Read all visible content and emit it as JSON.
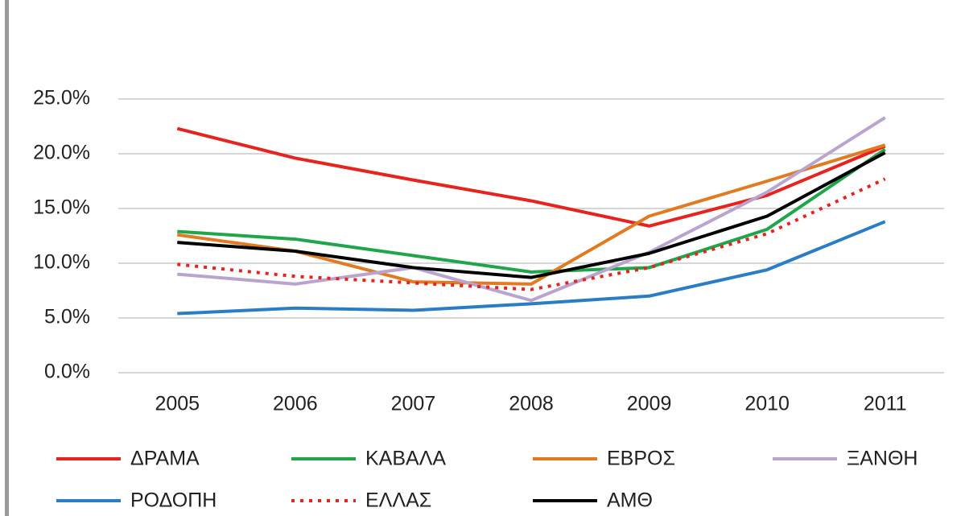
{
  "chart_data": {
    "type": "line",
    "categories": [
      "2005",
      "2006",
      "2007",
      "2008",
      "2009",
      "2010",
      "2011"
    ],
    "series": [
      {
        "name": "ΔΡΑΜΑ",
        "color": "#e8221e",
        "values": [
          22.3,
          19.6,
          17.6,
          15.7,
          13.4,
          16.2,
          20.7
        ]
      },
      {
        "name": "ΚΑΒΑΛΑ",
        "color": "#1fa64a",
        "values": [
          12.9,
          12.2,
          10.7,
          9.2,
          9.6,
          13.1,
          20.4
        ]
      },
      {
        "name": "ΕΒΡΟΣ",
        "color": "#e07b22",
        "values": [
          12.6,
          11.1,
          8.3,
          8.1,
          14.3,
          17.5,
          20.8
        ]
      },
      {
        "name": "ΞΑΝΘΗ",
        "color": "#b9a4d0",
        "values": [
          9.0,
          8.1,
          9.6,
          6.6,
          11.0,
          16.5,
          23.3
        ]
      },
      {
        "name": "ΡΟΔΟΠΗ",
        "color": "#2a7dc4",
        "values": [
          5.4,
          5.9,
          5.7,
          6.3,
          7.0,
          9.4,
          13.8
        ]
      },
      {
        "name": "ΕΛΛΑΣ",
        "color": "#e8221e",
        "line_style": "dotted",
        "values": [
          9.9,
          8.8,
          8.2,
          7.6,
          9.6,
          12.7,
          17.7
        ]
      },
      {
        "name": "ΑΜΘ",
        "color": "#000000",
        "values": [
          11.9,
          11.1,
          9.6,
          8.7,
          10.9,
          14.3,
          20.1
        ]
      }
    ],
    "ylim": [
      0,
      25
    ],
    "yticks": [
      {
        "value": 0,
        "label": "0.0%"
      },
      {
        "value": 5,
        "label": "5.0%"
      },
      {
        "value": 10,
        "label": "10.0%"
      },
      {
        "value": 15,
        "label": "15.0%"
      },
      {
        "value": 20,
        "label": "20.0%"
      },
      {
        "value": 25,
        "label": "25.0%"
      }
    ],
    "grid": true,
    "legend": "bottom"
  }
}
